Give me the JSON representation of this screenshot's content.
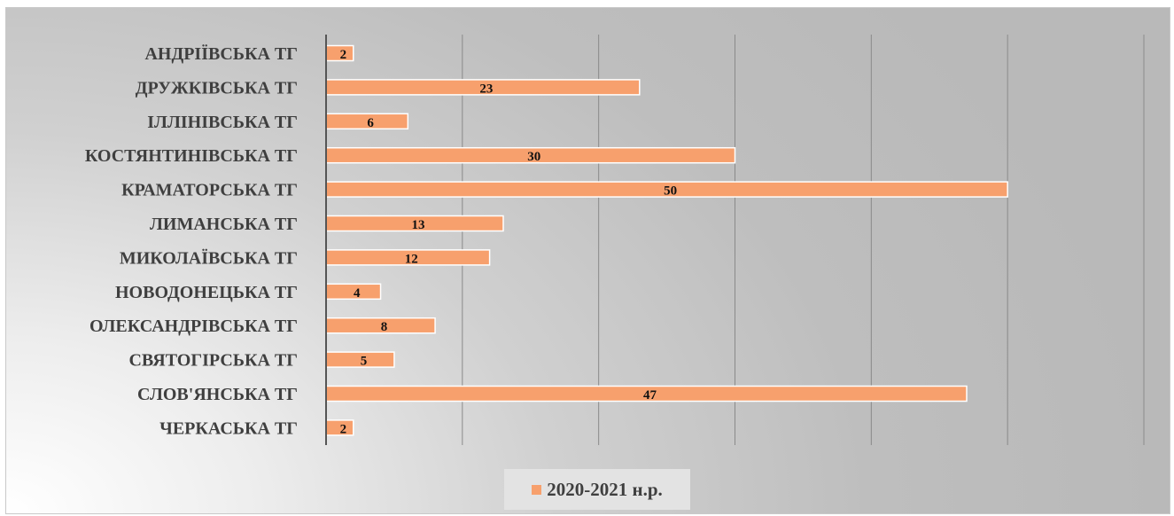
{
  "chart_data": {
    "type": "bar",
    "orientation": "horizontal",
    "categories": [
      "АНДРІЇВСЬКА ТГ",
      "ДРУЖКІВСЬКА ТГ",
      "ІЛЛІНІВСЬКА ТГ",
      "КОСТЯНТИНІВСЬКА ТГ",
      "КРАМАТОРСЬКА ТГ",
      "ЛИМАНСЬКА ТГ",
      "МИКОЛАЇВСЬКА ТГ",
      "НОВОДОНЕЦЬКА ТГ",
      "ОЛЕКСАНДРІВСЬКА ТГ",
      "СВЯТОГІРСЬКА ТГ",
      "СЛОВ'ЯНСЬКА ТГ",
      "ЧЕРКАСЬКА ТГ"
    ],
    "series": [
      {
        "name": "2020-2021 н.р.",
        "values": [
          2,
          23,
          6,
          30,
          50,
          13,
          12,
          4,
          8,
          5,
          47,
          2
        ]
      }
    ],
    "xlim": [
      0,
      60
    ],
    "grid": "vertical gridlines every 10 units",
    "tick_labels_shown": false,
    "data_labels": true,
    "legend": "bottom",
    "colors": {
      "bar": "#F7A06D",
      "bar_edge": "#ffffff",
      "axis": "#555555",
      "grid": "#8a8a8a"
    }
  }
}
